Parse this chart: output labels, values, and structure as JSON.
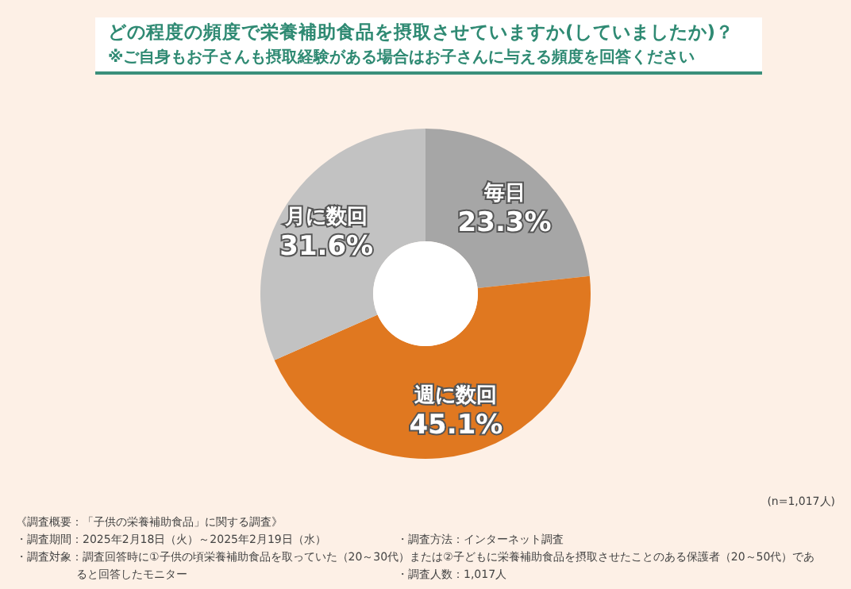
{
  "chart_data": {
    "type": "donut",
    "title": "どの程度の頻度で栄養補助食品を摂取させていますか(していましたか)？",
    "subtitle": "※ご自身もお子さんも摂取経験がある場合はお子さんに与える頻度を回答ください",
    "categories": [
      "毎日",
      "週に数回",
      "月に数回"
    ],
    "values": [
      23.3,
      45.1,
      31.6
    ],
    "value_labels": [
      "23.3%",
      "45.1%",
      "31.6%"
    ],
    "colors": [
      "#a6a6a6",
      "#e07820",
      "#c2c2c2"
    ],
    "annotations": [
      "(n=1,017人)",
      "《調査概要：「子供の栄養補助食品」に関する調査》",
      "・調査期間：2025年2月18日（火）～2025年2月19日（水）",
      "・調査方法：インターネット調査",
      "・調査対象：調査回答時に①子供の頃栄養補助食品を取っていた（20～30代）または②子どもに栄養補助食品を摂取させたことのある保護者（20～50代）であると回答したモニター",
      "・調査人数：1,017人"
    ]
  }
}
